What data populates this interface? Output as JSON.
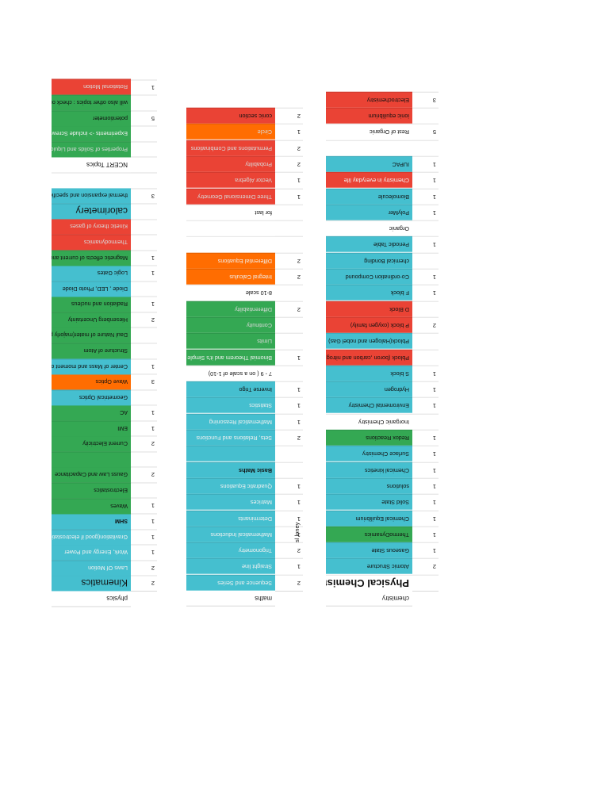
{
  "physics": {
    "header": "physics",
    "rows": [
      {
        "label": "Kinematics",
        "num": "2",
        "color": "blue",
        "style": "big",
        "text": "dark"
      },
      {
        "label": "Laws Of Motion",
        "num": "2",
        "color": "blue",
        "text": "white"
      },
      {
        "label": "Work, Energy and Power",
        "num": "1",
        "color": "blue",
        "text": "white"
      },
      {
        "label": "Gravitation(good if electrostatics is good)",
        "num": "1",
        "color": "blue",
        "text": "white"
      },
      {
        "label": "SHM",
        "num": "1",
        "color": "blue",
        "style": "bold",
        "text": "dark"
      },
      {
        "label": "Waves",
        "num": "1",
        "color": "green",
        "text": "dark"
      },
      {
        "label": "Electrostatics",
        "num": "",
        "color": "green",
        "text": "dark"
      },
      {
        "label": "Gauss Law and Capacitance",
        "num": "2",
        "color": "green",
        "text": "dark"
      },
      {
        "label": "",
        "num": "",
        "color": "green",
        "text": "dark"
      },
      {
        "label": "Current Electricity",
        "num": "2",
        "color": "green",
        "text": "dark"
      },
      {
        "label": "EMI",
        "num": "1",
        "color": "green",
        "text": "dark"
      },
      {
        "label": "AC",
        "num": "1",
        "color": "green",
        "text": "dark"
      },
      {
        "label": "Geometrical Optics",
        "num": "",
        "color": "blue",
        "text": "dark"
      },
      {
        "label": "Wave Optics",
        "num": "3",
        "color": "orange",
        "text": "dark"
      },
      {
        "label": "Center of Mass and moment of Intertia",
        "num": "1",
        "color": "blue",
        "text": "dark"
      },
      {
        "label": "Structure of Atom",
        "num": "",
        "color": "green",
        "text": "dark"
      },
      {
        "label": "Daul Nature of mater(majorly photo electric effect",
        "num": "",
        "color": "green",
        "text": "dark"
      },
      {
        "label": "Hiesenberg Uncertainty",
        "num": "2",
        "color": "green",
        "text": "dark"
      },
      {
        "label": "Radiation and nucleus",
        "num": "1",
        "color": "green",
        "text": "dark"
      },
      {
        "label": "Diode , LED, Photo Diode",
        "num": "",
        "color": "blue",
        "text": "dark"
      },
      {
        "label": "Logic Gates",
        "num": "1",
        "color": "blue",
        "text": "dark"
      },
      {
        "label": "Magnetic effects of current and magnetism",
        "num": "1",
        "color": "green",
        "text": "dark"
      },
      {
        "label": "Thermodynamics",
        "num": "",
        "color": "red",
        "text": "gray"
      },
      {
        "label": "Kinetic theory of gases",
        "num": "",
        "color": "red",
        "text": "gray"
      },
      {
        "label": "calorimetery",
        "num": "",
        "color": "blue",
        "style": "big",
        "text": "dark"
      },
      {
        "label": "thermal expansion and specific heats",
        "num": "3",
        "color": "blue",
        "text": "dark"
      },
      {
        "label": "",
        "num": "",
        "color": "white",
        "text": "dark"
      },
      {
        "label": "NCERT Topics",
        "num": "",
        "color": "white",
        "style": "hdr",
        "text": "dark"
      },
      {
        "label": "Properties of Solids and Liquids",
        "num": "",
        "color": "green",
        "text": "gray"
      },
      {
        "label": "Experiments -> include Screw gauge , vernier callipers",
        "num": "",
        "color": "green",
        "text": "white"
      },
      {
        "label": "potentiometer",
        "num": "5",
        "color": "green",
        "text": "dark"
      },
      {
        "label": "will also other topics : check online",
        "num": "",
        "color": "green",
        "text": "dark"
      },
      {
        "label": "Rotational Motion",
        "num": "1",
        "color": "red",
        "text": "gray"
      }
    ]
  },
  "maths": {
    "header": "maths",
    "rows": [
      {
        "label": "Sequence and Series",
        "num": "2",
        "color": "blue",
        "text": "white"
      },
      {
        "label": "Straight line",
        "num": "1",
        "color": "blue",
        "text": "white"
      },
      {
        "label": "Trigonometry",
        "num": "2",
        "color": "blue",
        "text": "white"
      },
      {
        "label": "Mathematical Inductions",
        "num": "1",
        "color": "blue",
        "text": "white"
      },
      {
        "label": "Determinants",
        "num": "1",
        "color": "blue",
        "text": "white"
      },
      {
        "label": "Matrices",
        "num": "1",
        "color": "blue",
        "text": "white"
      },
      {
        "label": "Quadratic Equations",
        "num": "1",
        "color": "blue",
        "text": "white"
      },
      {
        "label": "Basic Maths",
        "num": "",
        "color": "blue",
        "style": "bold",
        "text": "dark"
      },
      {
        "label": "",
        "num": "",
        "color": "blue",
        "text": "dark"
      },
      {
        "label": "Sets, Relations and Functions",
        "num": "2",
        "color": "blue",
        "text": "white"
      },
      {
        "label": "Mathematical Reasoning",
        "num": "1",
        "color": "blue",
        "text": "white"
      },
      {
        "label": "Statistics",
        "num": "1",
        "color": "blue",
        "text": "white"
      },
      {
        "label": "Inverse Trigo",
        "num": "1",
        "color": "blue",
        "text": "dark"
      },
      {
        "label": "7 - 9 ( on a scale of 1-10)",
        "num": "",
        "color": "white",
        "text": "dark"
      },
      {
        "label": "Binomial Theorem and it's Simple Applications",
        "num": "1",
        "color": "green",
        "text": "white"
      },
      {
        "label": "Limits",
        "num": "",
        "color": "green",
        "text": "gray"
      },
      {
        "label": "Continuity",
        "num": "",
        "color": "green",
        "text": "gray"
      },
      {
        "label": "Differentiability",
        "num": "2",
        "color": "green",
        "text": "gray"
      },
      {
        "label": "8-10 scale",
        "num": "",
        "color": "white",
        "text": "dark"
      },
      {
        "label": "Integral Calculus",
        "num": "2",
        "color": "orange",
        "text": "white"
      },
      {
        "label": "Differential Equations",
        "num": "2",
        "color": "orange",
        "text": "white"
      },
      {
        "label": "",
        "num": "",
        "color": "white",
        "text": "dark"
      },
      {
        "label": "",
        "num": "",
        "color": "white",
        "text": "dark"
      },
      {
        "label": "for last",
        "num": "",
        "color": "white",
        "text": "dark"
      },
      {
        "label": "Three Dimensional Geometry",
        "num": "1",
        "color": "red",
        "text": "gray"
      },
      {
        "label": "Vector Algebra",
        "num": "1",
        "color": "red",
        "text": "gray"
      },
      {
        "label": "Probability",
        "num": "2",
        "color": "red",
        "text": "gray"
      },
      {
        "label": "Permutations and Combinations",
        "num": "2",
        "color": "red",
        "text": "gray"
      },
      {
        "label": "Circle",
        "num": "1",
        "color": "orange",
        "text": "gray"
      },
      {
        "label": "conic section",
        "num": "2",
        "color": "red",
        "text": "dark"
      }
    ],
    "note": "sl loney"
  },
  "chemistry": {
    "header": "chemistry",
    "rows": [
      {
        "label": "Physical Chemistry",
        "num": "",
        "color": "white",
        "style": "big2",
        "text": "dark"
      },
      {
        "label": "Atomic Structure",
        "num": "2",
        "color": "blue",
        "text": "dark"
      },
      {
        "label": "Gaseous State",
        "num": "1",
        "color": "blue",
        "text": "dark"
      },
      {
        "label": "ThermoDynamics",
        "num": "1",
        "color": "green",
        "text": "dark"
      },
      {
        "label": "Chemical Equilibrium",
        "num": "1",
        "color": "blue",
        "text": "dark"
      },
      {
        "label": "Solid State",
        "num": "1",
        "color": "blue",
        "text": "dark"
      },
      {
        "label": "solutions",
        "num": "1",
        "color": "blue",
        "text": "dark"
      },
      {
        "label": "Chemical kinetics",
        "num": "1",
        "color": "blue",
        "text": "dark"
      },
      {
        "label": "Surface Chemistry",
        "num": "1",
        "color": "blue",
        "text": "dark"
      },
      {
        "label": "Redox Reactions",
        "num": "1",
        "color": "green",
        "text": "dark"
      },
      {
        "label": "Inorganic Chemistry",
        "num": "",
        "color": "white",
        "text": "dark"
      },
      {
        "label": "Enviromental Chemistry",
        "num": "1",
        "color": "blue",
        "text": "dark"
      },
      {
        "label": "Hydrogen",
        "num": "1",
        "color": "blue",
        "text": "dark"
      },
      {
        "label": "S block",
        "num": "1",
        "color": "blue",
        "text": "dark"
      },
      {
        "label": "Pblock (boron ,carbon and nitrog",
        "num": "",
        "color": "red",
        "text": "dark"
      },
      {
        "label": "Pblock(Halogen and nobel Gas)",
        "num": "",
        "color": "blue",
        "text": "dark"
      },
      {
        "label": "P block (oxygen family)",
        "num": "2",
        "color": "red",
        "text": "dark"
      },
      {
        "label": "D Block",
        "num": "",
        "color": "red",
        "text": "dark"
      },
      {
        "label": "F block",
        "num": "1",
        "color": "blue",
        "text": "dark"
      },
      {
        "label": "Co-ordination Compound",
        "num": "1",
        "color": "blue",
        "text": "dark"
      },
      {
        "label": "chemical Bonding",
        "num": "",
        "color": "blue",
        "text": "dark"
      },
      {
        "label": "Periodic Table",
        "num": "1",
        "color": "blue",
        "text": "dark"
      },
      {
        "label": "Organic",
        "num": "",
        "color": "white",
        "text": "dark"
      },
      {
        "label": "PolyMer",
        "num": "1",
        "color": "blue",
        "text": "dark"
      },
      {
        "label": "Biomolecule",
        "num": "1",
        "color": "blue",
        "text": "dark"
      },
      {
        "label": "Chemistry in everyday life",
        "num": "1",
        "color": "red",
        "text": "white"
      },
      {
        "label": "IUPAC",
        "num": "1",
        "color": "blue",
        "text": "dark"
      },
      {
        "label": "",
        "num": "",
        "color": "white",
        "text": "dark"
      },
      {
        "label": "Rest of Organic",
        "num": "5",
        "color": "white",
        "text": "dark"
      },
      {
        "label": "ionic equilibrium",
        "num": "",
        "color": "red",
        "text": "dark"
      },
      {
        "label": "Electrochemistry",
        "num": "3",
        "color": "red",
        "text": "dark"
      }
    ]
  },
  "colors": {
    "blue": "#45bfcf",
    "green": "#34a853",
    "red": "#ea4335",
    "orange": "#ff6d01"
  }
}
